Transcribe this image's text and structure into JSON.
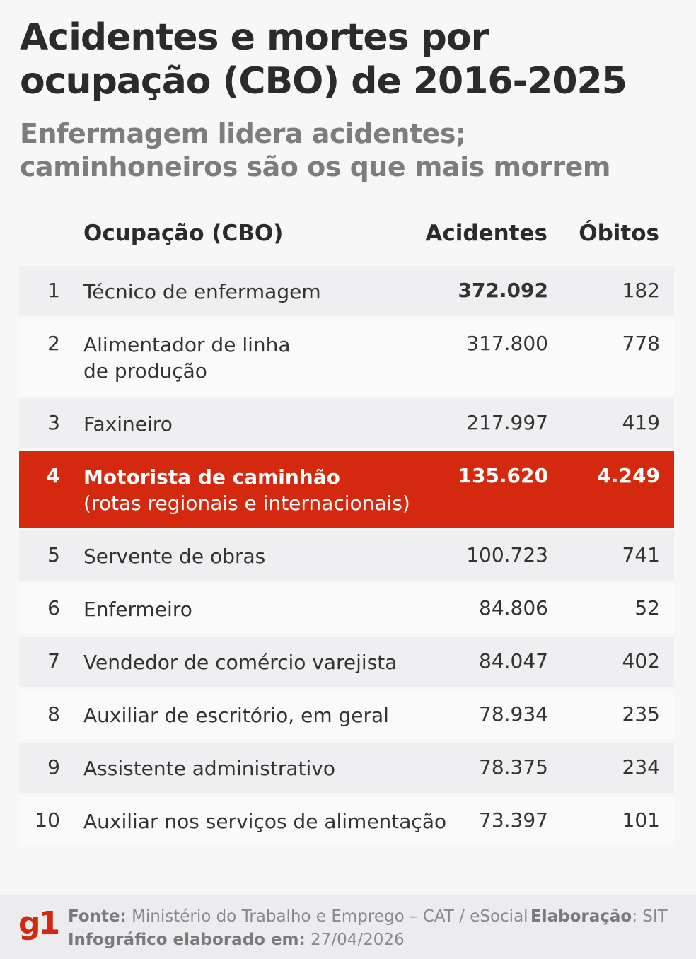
{
  "title": "Acidentes e mortes por ocupação (CBO) de 2016-2025",
  "subtitle": "Enfermagem lidera acidentes;\ncaminhoneiros são os que mais morrem",
  "colors": {
    "highlight": "#d4290f",
    "stripe": "#efeef1",
    "brand": "#d4290f"
  },
  "chart_data": {
    "type": "table",
    "columns": [
      "Ocupação (CBO)",
      "Acidentes",
      "Óbitos"
    ],
    "rows": [
      {
        "rank": "1",
        "occupation": "Técnico de enfermagem",
        "accidents": "372.092",
        "deaths": "182",
        "accidents_bold": true
      },
      {
        "rank": "2",
        "occupation": "Alimentador de linha",
        "occupation_sub": "de produção",
        "accidents": "317.800",
        "deaths": "778"
      },
      {
        "rank": "3",
        "occupation": "Faxineiro",
        "accidents": "217.997",
        "deaths": "419"
      },
      {
        "rank": "4",
        "occupation": "Motorista de caminhão",
        "occupation_sub": "(rotas regionais e internacionais)",
        "accidents": "135.620",
        "deaths": "4.249",
        "highlight": true
      },
      {
        "rank": "5",
        "occupation": "Servente de obras",
        "accidents": "100.723",
        "deaths": "741"
      },
      {
        "rank": "6",
        "occupation": "Enfermeiro",
        "accidents": "84.806",
        "deaths": "52"
      },
      {
        "rank": "7",
        "occupation": "Vendedor de comércio varejista",
        "accidents": "84.047",
        "deaths": "402"
      },
      {
        "rank": "8",
        "occupation": "Auxiliar de escritório, em geral",
        "accidents": "78.934",
        "deaths": "235"
      },
      {
        "rank": "9",
        "occupation": "Assistente administrativo",
        "accidents": "78.375",
        "deaths": "234"
      },
      {
        "rank": "10",
        "occupation": "Auxiliar nos serviços de alimentação",
        "accidents": "73.397",
        "deaths": "101"
      }
    ]
  },
  "footer": {
    "logo": "g1",
    "source_label": "Fonte:",
    "source": "Ministério do Trabalho e Emprego – CAT / eSocial",
    "credit_label": "Elaboração",
    "credit": ": SIT",
    "date_label": "Infográfico elaborado em:",
    "date": "27/04/2026"
  }
}
